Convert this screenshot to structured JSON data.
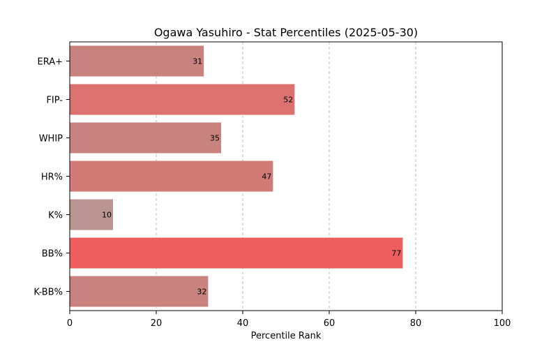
{
  "chart_data": {
    "type": "bar",
    "orientation": "horizontal",
    "title": "Ogawa Yasuhiro - Stat Percentiles (2025-05-30)",
    "xlabel": "Percentile Rank",
    "ylabel": "",
    "xlim": [
      0,
      100
    ],
    "xticks": [
      0,
      20,
      40,
      60,
      80,
      100
    ],
    "grid": "x-dashed",
    "categories": [
      "ERA+",
      "FIP-",
      "WHIP",
      "HR%",
      "K%",
      "BB%",
      "K-BB%"
    ],
    "values": [
      31,
      52,
      35,
      47,
      10,
      77,
      32
    ],
    "colors": [
      "#c8827f",
      "#dc7270",
      "#c8827f",
      "#d27a77",
      "#b89593",
      "#ee5e5e",
      "#c8827f"
    ],
    "show_value_labels": true
  }
}
